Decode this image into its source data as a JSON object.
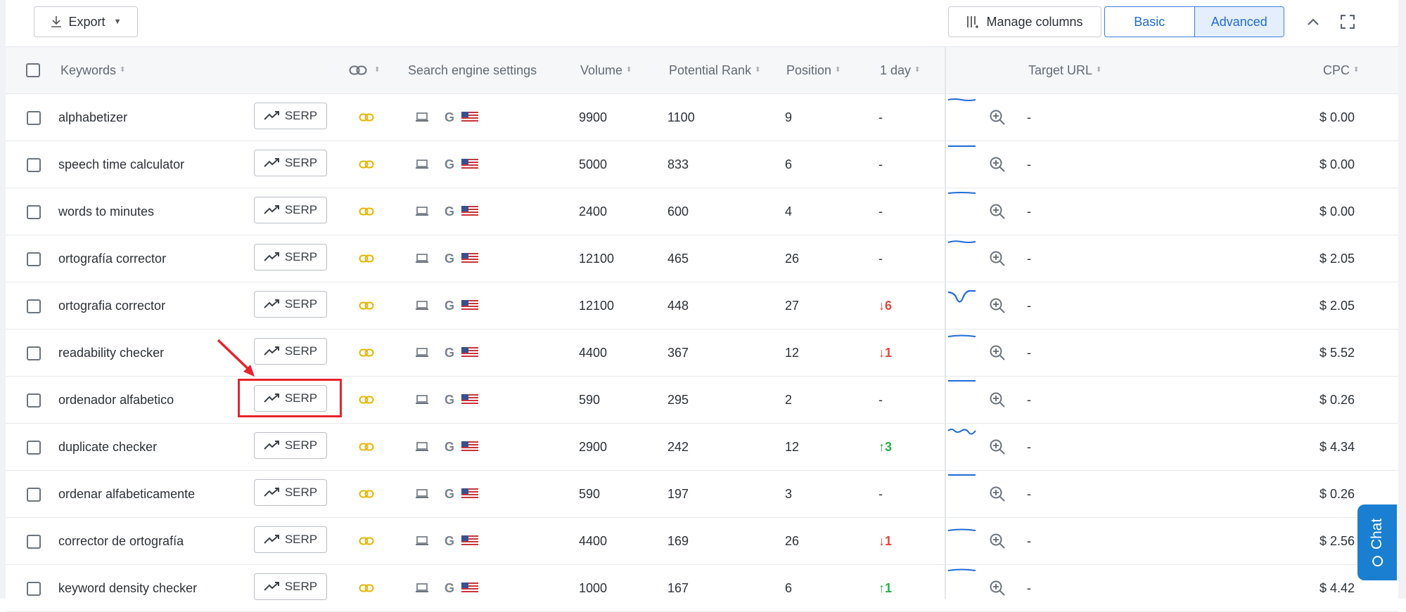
{
  "toolbar": {
    "export_label": "Export",
    "manage_columns_label": "Manage columns",
    "view_basic": "Basic",
    "view_advanced": "Advanced",
    "active_view": "Advanced"
  },
  "columns": {
    "keywords": "Keywords",
    "search_engine_settings": "Search engine settings",
    "volume": "Volume",
    "potential_rank": "Potential Rank",
    "position": "Position",
    "one_day": "1 day",
    "target_url": "Target URL",
    "cpc": "CPC"
  },
  "serp_label": "SERP",
  "icons": {
    "export": "download-icon",
    "manage": "columns-icon",
    "collapse": "chevron-up-icon",
    "fullscreen": "fullscreen-icon",
    "link": "link-icon",
    "device": "desktop-icon",
    "engine": "google-icon",
    "country": "us-flag-icon",
    "zoom": "zoom-in-icon",
    "trend": "trend-icon"
  },
  "colors": {
    "accent": "#1f6bd6",
    "link_icon": "#e8b400",
    "down": "#e2463a",
    "up": "#27ae4a",
    "chat": "#1a7fd0",
    "highlight": "#e8232b"
  },
  "rows": [
    {
      "keyword": "alphabetizer",
      "volume": "9900",
      "potential_rank": "1100",
      "position": "9",
      "one_day": "-",
      "change_dir": "none",
      "target_url": "-",
      "cpc": "$ 0.00",
      "spark": "slight"
    },
    {
      "keyword": "speech time calculator",
      "volume": "5000",
      "potential_rank": "833",
      "position": "6",
      "one_day": "-",
      "change_dir": "none",
      "target_url": "-",
      "cpc": "$ 0.00",
      "spark": "flat"
    },
    {
      "keyword": "words to minutes",
      "volume": "2400",
      "potential_rank": "600",
      "position": "4",
      "one_day": "-",
      "change_dir": "none",
      "target_url": "-",
      "cpc": "$ 0.00",
      "spark": "flat"
    },
    {
      "keyword": "ortografía corrector",
      "volume": "12100",
      "potential_rank": "465",
      "position": "26",
      "one_day": "-",
      "change_dir": "none",
      "target_url": "-",
      "cpc": "$ 2.05",
      "spark": "slight"
    },
    {
      "keyword": "ortografia corrector",
      "volume": "12100",
      "potential_rank": "448",
      "position": "27",
      "one_day": "6",
      "change_dir": "down",
      "target_url": "-",
      "cpc": "$ 2.05",
      "spark": "dip"
    },
    {
      "keyword": "readability checker",
      "volume": "4400",
      "potential_rank": "367",
      "position": "12",
      "one_day": "1",
      "change_dir": "down",
      "target_url": "-",
      "cpc": "$ 5.52",
      "spark": "flat"
    },
    {
      "keyword": "ordenador alfabetico",
      "volume": "590",
      "potential_rank": "295",
      "position": "2",
      "one_day": "-",
      "change_dir": "none",
      "target_url": "-",
      "cpc": "$ 0.26",
      "spark": "flat"
    },
    {
      "keyword": "duplicate checker",
      "volume": "2900",
      "potential_rank": "242",
      "position": "12",
      "one_day": "3",
      "change_dir": "up",
      "target_url": "-",
      "cpc": "$ 4.34",
      "spark": "wave"
    },
    {
      "keyword": "ordenar alfabeticamente",
      "volume": "590",
      "potential_rank": "197",
      "position": "3",
      "one_day": "-",
      "change_dir": "none",
      "target_url": "-",
      "cpc": "$ 0.26",
      "spark": "flat"
    },
    {
      "keyword": "corrector de ortografía",
      "volume": "4400",
      "potential_rank": "169",
      "position": "26",
      "one_day": "1",
      "change_dir": "down",
      "target_url": "-",
      "cpc": "$ 2.56",
      "spark": "slight"
    },
    {
      "keyword": "keyword density checker",
      "volume": "1000",
      "potential_rank": "167",
      "position": "6",
      "one_day": "1",
      "change_dir": "up",
      "target_url": "-",
      "cpc": "$ 4.42",
      "spark": "slight"
    }
  ],
  "chat_label": "Chat",
  "annotation": {
    "highlighted_row": 6,
    "target": "serp-button"
  }
}
